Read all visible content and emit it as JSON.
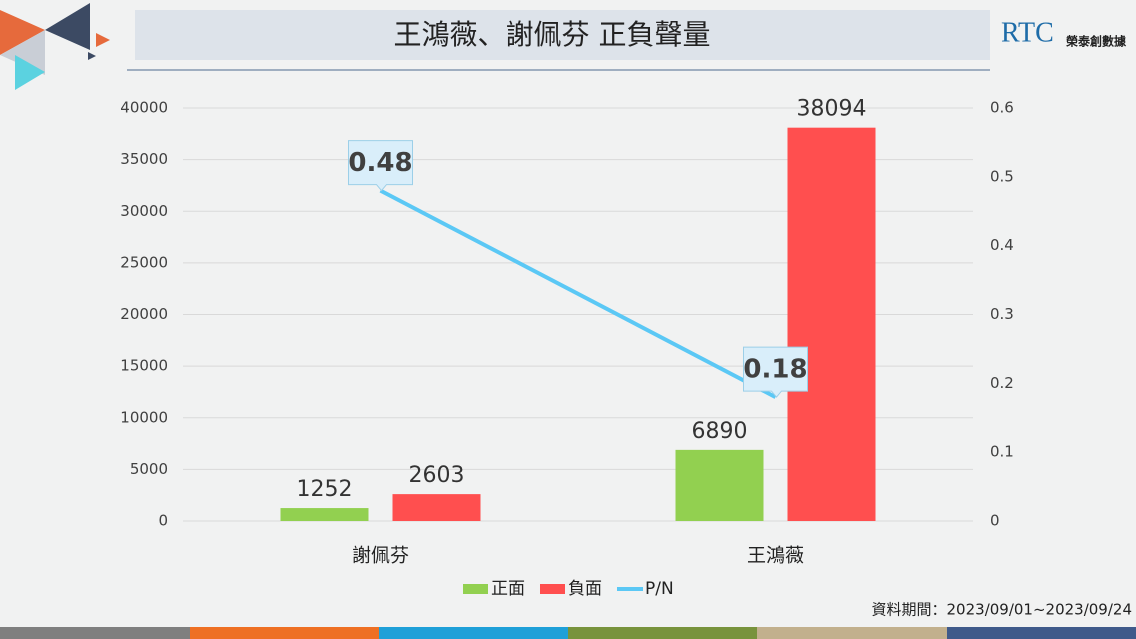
{
  "chart_data": {
    "type": "bar",
    "title": "王鴻薇、謝佩芬 正負聲量",
    "logo": "RTC",
    "logo_caption": "榮泰創數據",
    "note": "資料期間：2023/09/01~2023/09/24",
    "categories": [
      "謝佩芬",
      "王鴻薇"
    ],
    "series": [
      {
        "name": "正面",
        "color": "#92d050",
        "values": [
          1252,
          6890
        ]
      },
      {
        "name": "負面",
        "color": "#ff4f4f",
        "values": [
          2603,
          38094
        ]
      },
      {
        "name": "P/N",
        "color": "#5bc8f5",
        "values": [
          0.48,
          0.18
        ],
        "axis": "y2",
        "type": "line"
      }
    ],
    "ylim": [
      0,
      40000
    ],
    "yticks": [
      0,
      5000,
      10000,
      15000,
      20000,
      25000,
      30000,
      35000,
      40000
    ],
    "y2lim": [
      0,
      0.6
    ],
    "y2ticks": [
      0,
      0.1,
      0.2,
      0.3,
      0.4,
      0.5,
      0.6
    ],
    "grid": true
  }
}
